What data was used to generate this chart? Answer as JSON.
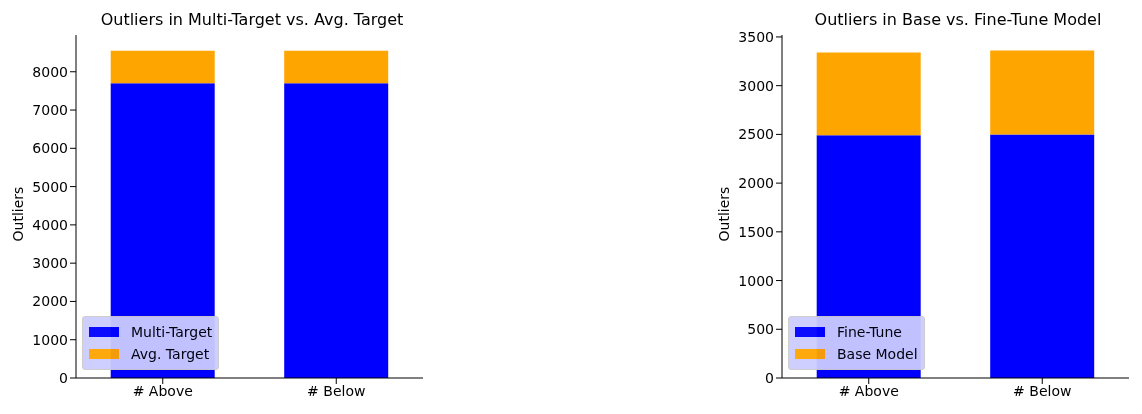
{
  "chart_data": [
    {
      "type": "bar",
      "title": "Outliers in Multi-Target vs. Avg. Target",
      "ylabel": "Outliers",
      "categories": [
        "# Above",
        "# Below"
      ],
      "stacked": true,
      "legend": "bottom left",
      "grid": false,
      "ylim": [
        0,
        8960
      ],
      "yticks": [
        0,
        1000,
        2000,
        3000,
        4000,
        5000,
        6000,
        7000,
        8000
      ],
      "series": [
        {
          "name": "Multi-Target",
          "color": "#0000ff",
          "values": [
            7700,
            7700
          ]
        },
        {
          "name": "Avg. Target",
          "color": "#ffa500",
          "values": [
            850,
            850
          ]
        }
      ]
    },
    {
      "type": "bar",
      "title": "Outliers in Base vs. Fine-Tune Model",
      "ylabel": "Outliers",
      "categories": [
        "# Above",
        "# Below"
      ],
      "stacked": true,
      "legend": "bottom left",
      "grid": false,
      "ylim": [
        0,
        3520
      ],
      "yticks": [
        0,
        500,
        1000,
        1500,
        2000,
        2500,
        3000,
        3500
      ],
      "series": [
        {
          "name": "Fine-Tune",
          "color": "#0000ff",
          "values": [
            2490,
            2500
          ]
        },
        {
          "name": "Base Model",
          "color": "#ffa500",
          "values": [
            850,
            860
          ]
        }
      ]
    }
  ]
}
